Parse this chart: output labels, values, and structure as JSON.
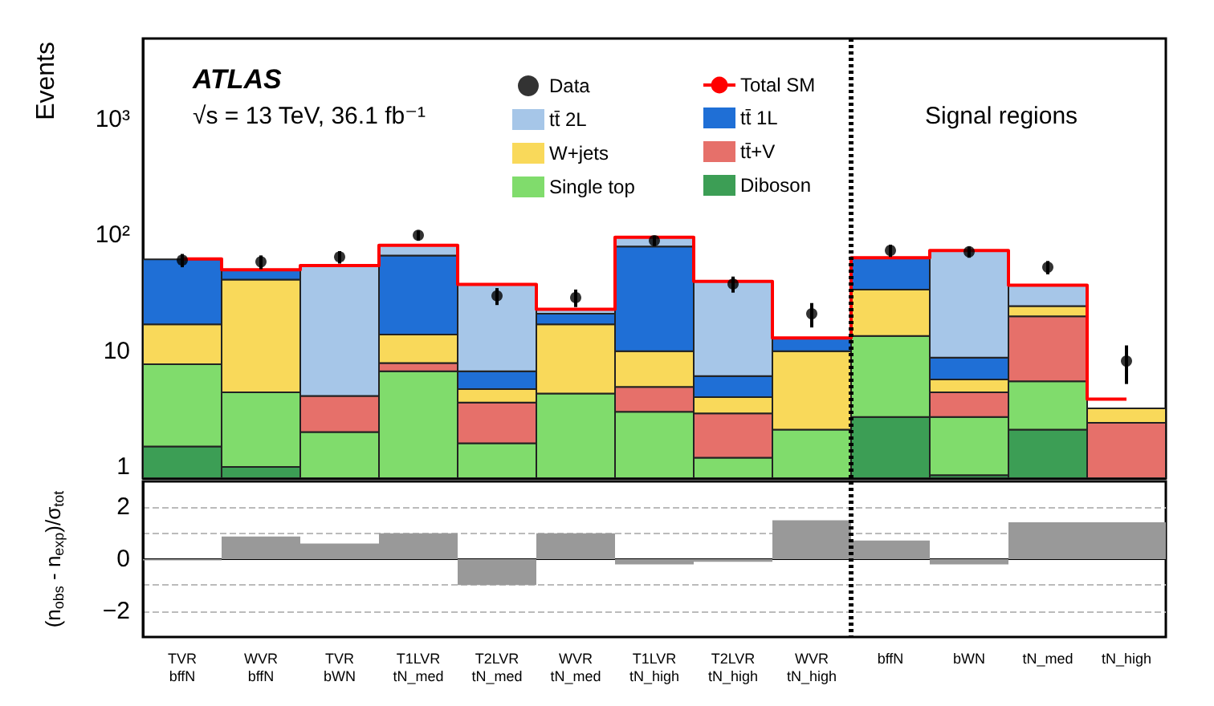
{
  "chart_data": [
    {
      "type": "bar",
      "stacked": true,
      "log": "y",
      "ylabel": "Events",
      "tick_labels": "y",
      "legend": "top right",
      "ylim": [
        0.8,
        5000
      ],
      "yticks": [
        1,
        10,
        {
          "value": 100,
          "label": "10²"
        },
        {
          "value": 1000,
          "label": "10³"
        }
      ],
      "categories": [
        null,
        null,
        null,
        null,
        null,
        null,
        null,
        null,
        null,
        null,
        null,
        null,
        null
      ],
      "annotations": [
        "ATLAS",
        "√s = 13 TeV, 36.1 fb⁻¹",
        "Signal regions"
      ],
      "series": [
        {
          "name": "Diboson",
          "color": "#3c9e55",
          "values": [
            1.5,
            1.0,
            null,
            null,
            null,
            null,
            null,
            null,
            null,
            2.7,
            0.85,
            2.1,
            null
          ]
        },
        {
          "name": "Single top",
          "color": "#80dc6c",
          "values": [
            6.2,
            3.4,
            2.0,
            6.7,
            1.6,
            4.3,
            3.0,
            1.2,
            2.1,
            10.8,
            1.85,
            3.4,
            null
          ]
        },
        {
          "name": "tt̄+V",
          "color": "#e6706a",
          "values": [
            null,
            null,
            2.1,
            1.2,
            2.0,
            null,
            1.9,
            1.7,
            null,
            null,
            1.7,
            14.5,
            2.4
          ]
        },
        {
          "name": "W+jets",
          "color": "#f9d95a",
          "values": [
            9.3,
            37,
            null,
            6,
            1.1,
            12.7,
            5.1,
            1.1,
            7.9,
            20.5,
            1.3,
            4.5,
            0.8
          ]
        },
        {
          "name": "tt̄ 1L",
          "color": "#1f6fd6",
          "values": [
            45,
            9,
            null,
            53,
            2.0,
            4,
            70,
            2.1,
            3,
            30,
            3.1,
            null,
            null
          ]
        },
        {
          "name": "tt̄ 2L",
          "color": "#a6c6e8",
          "values": [
            null,
            null,
            50,
            15,
            31,
            2,
            16,
            34,
            null,
            null,
            65,
            12.5,
            null
          ]
        },
        {
          "name": "Data",
          "type": "scatter",
          "marker": "circle",
          "color": "#000000",
          "values": [
            61,
            59,
            65,
            100,
            30,
            29,
            90,
            38,
            21,
            74,
            72,
            53,
            8.2
          ],
          "errors": [
            8,
            8,
            8,
            10,
            5,
            5,
            9,
            6,
            5,
            9,
            8,
            7,
            3
          ]
        },
        {
          "name": "Total SM",
          "type": "step",
          "color": "#ff0000",
          "values": [
            62.5,
            50.4,
            54.7,
            82,
            37.7,
            23,
            96,
            40,
            13,
            64,
            74,
            37,
            3.85
          ]
        }
      ]
    },
    {
      "type": "bar",
      "ylabel": "(n$_{obs}$ - n$_{exp}$)/σ$_{tot}$",
      "grid": "y",
      "ylim": [
        -3,
        3
      ],
      "yticks": [
        {
          "value": -2,
          "label": "−2"
        },
        {
          "value": -1,
          "label": null
        },
        0,
        {
          "value": 1,
          "label": null
        },
        2
      ],
      "categories": [
        "TVR\nbffN",
        "WVR\nbffN",
        "TVR\nbWN",
        "T1LVR\ntN_med",
        "T2LVR\ntN_med",
        "WVR\ntN_med",
        "T1LVR\ntN_high",
        "T2LVR\ntN_high",
        "WVR\ntN_high",
        "bffN",
        "bWN",
        "tN_med",
        "tN_high"
      ],
      "ref_lines": [
        {
          "axis": "x",
          "value": "bffN",
          "color": "#000000",
          "line_style": "dotted"
        }
      ],
      "series": [
        {
          "color": "#999999",
          "values": [
            -0.05,
            0.87,
            0.6,
            1.0,
            -1.0,
            1.0,
            -0.2,
            -0.1,
            1.5,
            0.72,
            -0.2,
            1.42,
            1.42
          ]
        }
      ]
    }
  ]
}
